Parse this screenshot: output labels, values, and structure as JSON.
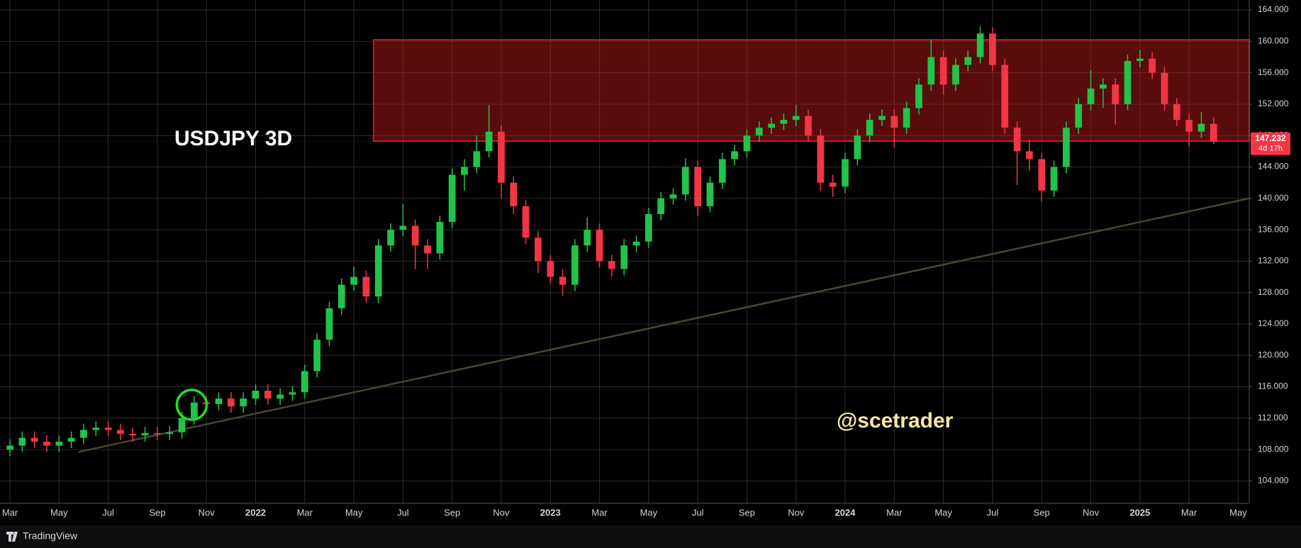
{
  "chart_data": {
    "type": "candlestick",
    "title": "USDJPY 3D",
    "watermark": "@scetrader",
    "countdown": "4d 17h",
    "up_color": "#22c34a",
    "down_color": "#f23645",
    "grid": true,
    "open": [
      108,
      108.5,
      109.5,
      109,
      108.5,
      109,
      109.5,
      110.5,
      110.8,
      110.5,
      110,
      109.8,
      110.1,
      110,
      110.2,
      112,
      114,
      113.8,
      114.5,
      113.5,
      114.5,
      115.5,
      114.5,
      115,
      115.3,
      118,
      122,
      126,
      129,
      130,
      127.5,
      134,
      136,
      136.5,
      134,
      133,
      137,
      143,
      144,
      146,
      148.5,
      142,
      139,
      135,
      132,
      130,
      129,
      134,
      136,
      132,
      131,
      134,
      134.5,
      138,
      140,
      140.5,
      144,
      139,
      142,
      145,
      146,
      148,
      149,
      149.5,
      150,
      150.5,
      148,
      142,
      141.5,
      145,
      148,
      150,
      150.5,
      149,
      151.5,
      154.5,
      158,
      154.5,
      157,
      158,
      161,
      157,
      149,
      146,
      145,
      141,
      144,
      149,
      152,
      154,
      154.5,
      152,
      157.5,
      157.8,
      156,
      152,
      150,
      148.5,
      149.5
    ],
    "high": [
      109.3,
      110.3,
      110.3,
      109.8,
      109.8,
      110.3,
      111.3,
      111.6,
      111.6,
      111.3,
      110.8,
      110.9,
      110.9,
      111,
      112.8,
      114.8,
      114.8,
      115.3,
      115.3,
      115.3,
      116.3,
      116.3,
      115.8,
      116.1,
      118.8,
      122.8,
      126.8,
      129.8,
      131.3,
      130.8,
      134.8,
      136.8,
      139.3,
      137.3,
      134.8,
      137.8,
      143.8,
      145,
      148,
      151.9,
      149.3,
      142.8,
      139.8,
      135.8,
      132.8,
      131,
      134.8,
      137.6,
      136.8,
      132.8,
      134.8,
      135.3,
      138.8,
      140.8,
      141.3,
      145.1,
      144.8,
      142.8,
      145.8,
      146.8,
      148.8,
      149.8,
      150.3,
      150.8,
      151.9,
      151.3,
      148.8,
      143,
      145.8,
      148.8,
      150.8,
      151.3,
      151.3,
      152.3,
      155.3,
      160.2,
      158.8,
      157.8,
      158.8,
      161.9,
      161.8,
      157.8,
      149.8,
      147.5,
      145.8,
      144.8,
      149.8,
      152.8,
      156.3,
      155.3,
      155.3,
      158.3,
      158.9,
      158.6,
      156.8,
      152.8,
      150.8,
      151,
      150.3
    ],
    "low": [
      107.2,
      107.7,
      108.2,
      107.7,
      107.7,
      108.2,
      108.7,
      109.7,
      109.7,
      109.2,
      109,
      109,
      109.2,
      109.2,
      109.4,
      111.2,
      113,
      113,
      112.7,
      112.7,
      113.7,
      113.7,
      113.7,
      114.2,
      114.5,
      117.2,
      121.2,
      125.2,
      128.2,
      126.7,
      126.7,
      133.2,
      135.2,
      131,
      131,
      132.2,
      136.2,
      141,
      143.2,
      145.2,
      140,
      138,
      134.2,
      130.5,
      129.2,
      127.6,
      128.2,
      133.2,
      131.2,
      130,
      130.2,
      133.2,
      133.7,
      137.2,
      139.2,
      139.7,
      137.8,
      138.2,
      141.2,
      144.2,
      145.2,
      147.2,
      148.2,
      148.7,
      149.2,
      147.2,
      141,
      140.2,
      140.7,
      144.2,
      147.2,
      149.2,
      146.5,
      148.2,
      150.7,
      153.7,
      153.2,
      153.7,
      156.2,
      157.2,
      156.2,
      148.2,
      141.7,
      143.5,
      139.6,
      140.2,
      143.2,
      148.2,
      151.2,
      151.5,
      149.4,
      151.2,
      156.7,
      155.2,
      151.2,
      149.2,
      146.6,
      147.7,
      146.9
    ],
    "close": [
      108.5,
      109.5,
      109,
      108.5,
      109,
      109.5,
      110.5,
      110.8,
      110.5,
      110,
      109.8,
      110.1,
      110,
      110.2,
      112,
      114,
      113.8,
      114.5,
      113.5,
      114.5,
      115.5,
      114.5,
      115,
      115.3,
      118,
      122,
      126,
      129,
      130,
      127.5,
      134,
      136,
      136.5,
      134,
      133,
      137,
      143,
      144,
      146,
      148.5,
      142,
      139,
      135,
      132,
      130,
      129,
      134,
      136,
      132,
      131,
      134,
      134.5,
      138,
      140,
      140.5,
      144,
      139,
      142,
      145,
      146,
      148,
      149,
      149.5,
      150,
      150.5,
      148,
      142,
      141.5,
      145,
      148,
      150,
      150.5,
      149,
      151.5,
      154.5,
      158,
      154.5,
      157,
      158,
      161,
      157,
      149,
      146,
      145,
      141,
      144,
      149,
      152,
      154,
      154.5,
      152,
      157.5,
      157.8,
      156,
      152,
      150,
      148.5,
      149.5,
      147.232
    ],
    "xlim": [
      -0.81,
      100.9
    ],
    "ylim": [
      101.15,
      165.27
    ],
    "xticks": [
      {
        "value": 0,
        "label": "Mar"
      },
      {
        "value": 4,
        "label": "May"
      },
      {
        "value": 8,
        "label": "Jul"
      },
      {
        "value": 12,
        "label": "Sep"
      },
      {
        "value": 16,
        "label": "Nov"
      },
      {
        "value": 20,
        "label": "2022"
      },
      {
        "value": 24,
        "label": "Mar"
      },
      {
        "value": 28,
        "label": "May"
      },
      {
        "value": 32,
        "label": "Jul"
      },
      {
        "value": 36,
        "label": "Sep"
      },
      {
        "value": 40,
        "label": "Nov"
      },
      {
        "value": 44,
        "label": "2023"
      },
      {
        "value": 48,
        "label": "Mar"
      },
      {
        "value": 52,
        "label": "May"
      },
      {
        "value": 56,
        "label": "Jul"
      },
      {
        "value": 60,
        "label": "Sep"
      },
      {
        "value": 64,
        "label": "Nov"
      },
      {
        "value": 68,
        "label": "2024"
      },
      {
        "value": 72,
        "label": "Mar"
      },
      {
        "value": 76,
        "label": "May"
      },
      {
        "value": 80,
        "label": "Jul"
      },
      {
        "value": 84,
        "label": "Sep"
      },
      {
        "value": 88,
        "label": "Nov"
      },
      {
        "value": 92,
        "label": "2025"
      },
      {
        "value": 96,
        "label": "Mar"
      },
      {
        "value": 100,
        "label": "May"
      }
    ],
    "yticks": [
      {
        "value": 104,
        "label": "104.000"
      },
      {
        "value": 108,
        "label": "108.000"
      },
      {
        "value": 112,
        "label": "112.000"
      },
      {
        "value": 116,
        "label": "116.000"
      },
      {
        "value": 120,
        "label": "120.000"
      },
      {
        "value": 124,
        "label": "124.000"
      },
      {
        "value": 128,
        "label": "128.000"
      },
      {
        "value": 132,
        "label": "132.000"
      },
      {
        "value": 136,
        "label": "136.000"
      },
      {
        "value": 140,
        "label": "140.000"
      },
      {
        "value": 144,
        "label": "144.000"
      },
      {
        "value": 148,
        "label": "148.000"
      },
      {
        "value": 152,
        "label": "152.000"
      },
      {
        "value": 156,
        "label": "156.000"
      },
      {
        "value": 160,
        "label": "160.000"
      },
      {
        "value": 164,
        "label": "164.000"
      }
    ],
    "zone": {
      "from": 147.3,
      "to": 160.2,
      "start": 29.6,
      "color": "#c41a1a"
    },
    "trendline": {
      "x": [
        5.6,
        100.9
      ],
      "values": [
        107.7,
        140.0
      ],
      "color": "#4a4630"
    },
    "highlight": {
      "x": 14.8,
      "value": 113.7,
      "color": "#22dd22"
    }
  },
  "footer": "TradingView"
}
